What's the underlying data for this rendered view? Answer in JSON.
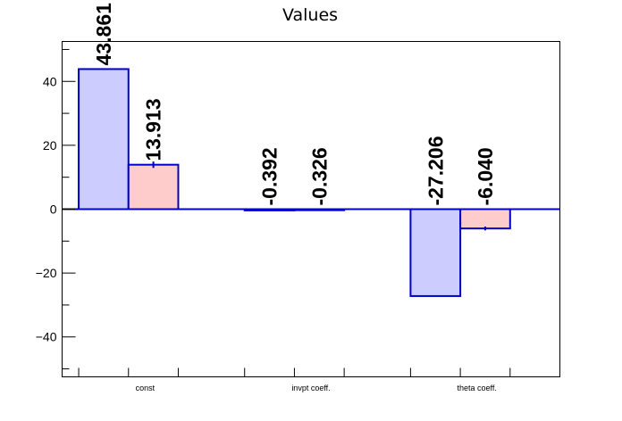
{
  "chart_data": {
    "type": "bar",
    "title": "Values",
    "categories": [
      "const",
      "invpt coeff.",
      "theta coeff."
    ],
    "series": [
      {
        "values": [
          43.861,
          -0.392,
          -27.206
        ],
        "labels": [
          "43.861",
          "-0.392",
          "-27.206"
        ],
        "color": "#ccccff"
      },
      {
        "values": [
          13.913,
          -0.326,
          -6.04
        ],
        "labels": [
          "13.913",
          "-0.326",
          "-6.040"
        ],
        "errors": [
          1.0,
          0.2,
          0.6
        ],
        "color": "#ffcccc"
      }
    ],
    "outline_color": "#0000cc",
    "ylim": [
      -52.5,
      52.5
    ],
    "yticks": [
      -40,
      -20,
      0,
      20,
      40
    ],
    "yticks_labels": [
      "−40",
      "−20",
      "0",
      "20",
      "40"
    ],
    "y_minor_step": 10,
    "grid": false,
    "xlabel": "",
    "ylabel": ""
  }
}
